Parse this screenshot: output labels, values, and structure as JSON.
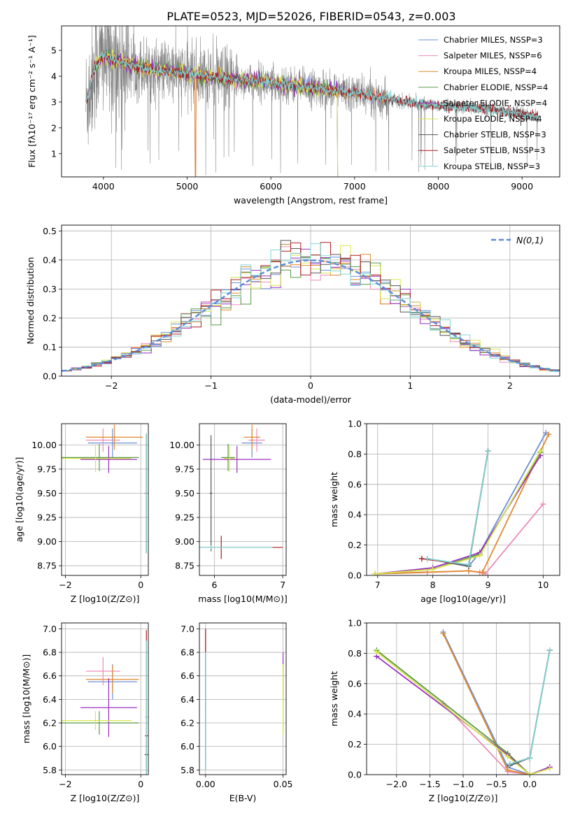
{
  "figure": {
    "title": "PLATE=0523, MJD=52026, FIBERID=0543, z=0.003"
  },
  "colors": {
    "Chabrier MILES": "#6a8fd8",
    "Salpeter MILES": "#ec8cb8",
    "Kroupa MILES": "#e08a2e",
    "Chabrier ELODIE": "#5a9a46",
    "Salpeter ELODIE": "#9b30c0",
    "Kroupa ELODIE": "#d8e64a",
    "Chabrier STELIB": "#555555",
    "Salpeter STELIB": "#b01c22",
    "Kroupa STELIB": "#7fd6d6",
    "data": "#808080",
    "gauss": "#5b8bd8"
  },
  "chart_data": [
    {
      "id": "spectrum",
      "type": "line",
      "title": "PLATE=0523, MJD=52026, FIBERID=0543, z=0.003",
      "xlabel": "wavelength [Angstrom, rest frame]",
      "ylabel": "Flux [fλ10⁻¹⁷ erg cm⁻² s⁻¹ A⁻¹]",
      "xlim": [
        3500,
        9450
      ],
      "ylim": [
        0.1,
        5.95
      ],
      "xticks": [
        4000,
        5000,
        6000,
        7000,
        8000,
        9000
      ],
      "yticks": [
        1,
        2,
        3,
        4,
        5
      ],
      "legend_position": "top-right",
      "legend": [
        {
          "label": "Chabrier MILES, NSSP=3",
          "model": "Chabrier MILES"
        },
        {
          "label": "Salpeter MILES, NSSP=6",
          "model": "Salpeter MILES"
        },
        {
          "label": "Kroupa MILES, NSSP=4",
          "model": "Kroupa MILES"
        },
        {
          "label": "Chabrier ELODIE, NSSP=4",
          "model": "Chabrier ELODIE"
        },
        {
          "label": "Salpeter ELODIE, NSSP=4",
          "model": "Salpeter ELODIE"
        },
        {
          "label": "Kroupa ELODIE, NSSP=4",
          "model": "Kroupa ELODIE"
        },
        {
          "label": "Chabrier STELIB, NSSP=3",
          "model": "Chabrier STELIB"
        },
        {
          "label": "Salpeter STELIB, NSSP=3",
          "model": "Salpeter STELIB"
        },
        {
          "label": "Kroupa STELIB, NSSP=3",
          "model": "Kroupa STELIB"
        }
      ],
      "continuum_x": [
        3800,
        3900,
        4000,
        4200,
        4500,
        5000,
        5500,
        6000,
        6500,
        7000,
        7500,
        8000,
        8500,
        9000,
        9200
      ],
      "continuum_y": [
        3.0,
        4.4,
        4.8,
        4.55,
        4.3,
        4.1,
        3.9,
        3.75,
        3.55,
        3.35,
        3.05,
        2.85,
        2.75,
        2.55,
        2.4
      ],
      "data_x_range": [
        3790,
        9200
      ],
      "miles_x_range": [
        3800,
        7420
      ],
      "stelib_x_range": [
        3790,
        9200
      ],
      "elodie_x_range": [
        3900,
        6800
      ]
    },
    {
      "id": "residuals",
      "type": "step",
      "xlabel": "(data-model)/error",
      "ylabel": "Normed distribution",
      "xlim": [
        -2.5,
        2.5
      ],
      "ylim": [
        0,
        0.52
      ],
      "xticks": [
        -2,
        -1,
        0,
        1,
        2
      ],
      "yticks": [
        0.0,
        0.1,
        0.2,
        0.3,
        0.4,
        0.5
      ],
      "legend_position": "top-right",
      "legend_label": "N(0,1)",
      "bin_width": 0.1,
      "bin_start": -2.5
    },
    {
      "id": "age_vs_Z",
      "type": "errorbar",
      "xlabel": "Z [log10(Z/Z⊙)]",
      "ylabel": "age  [log10(age/yr)]",
      "xlim": [
        -2.1,
        0.2
      ],
      "ylim": [
        8.65,
        10.22
      ],
      "xticks": [
        -2,
        0
      ],
      "yticks": [
        8.75,
        9.0,
        9.25,
        9.5,
        9.75,
        10.0
      ],
      "points": [
        {
          "model": "Chabrier MILES",
          "x": -0.75,
          "xerr": 0.65,
          "y": 10.02,
          "yerr": 0.15
        },
        {
          "model": "Salpeter MILES",
          "x": -1.0,
          "xerr": 0.45,
          "y": 10.05,
          "yerr": 0.12
        },
        {
          "model": "Kroupa MILES",
          "x": -0.7,
          "xerr": 0.75,
          "y": 10.08,
          "yerr": 0.13
        },
        {
          "model": "Chabrier ELODIE",
          "x": -1.1,
          "xerr": 1.05,
          "y": 9.87,
          "yerr": 0.14
        },
        {
          "model": "Salpeter ELODIE",
          "x": -0.85,
          "xerr": 0.75,
          "y": 9.85,
          "yerr": 0.14
        },
        {
          "model": "Kroupa ELODIE",
          "x": -1.2,
          "xerr": 0.95,
          "y": 9.86,
          "yerr": 0.14
        },
        {
          "model": "Chabrier STELIB",
          "x": 0.15,
          "xerr": 0.05,
          "y": 9.5,
          "yerr": 0.6
        },
        {
          "model": "Salpeter STELIB",
          "x": 0.15,
          "xerr": 0.04,
          "y": 9.5,
          "yerr": 0.62
        },
        {
          "model": "Kroupa STELIB",
          "x": 0.15,
          "xerr": 0.04,
          "y": 9.5,
          "yerr": 0.62
        }
      ]
    },
    {
      "id": "age_vs_mass",
      "type": "errorbar",
      "xlabel": "mass [log10(M/M⊙)]",
      "ylabel": "",
      "xlim": [
        5.78,
        7.05
      ],
      "ylim": [
        8.65,
        10.22
      ],
      "xticks": [
        6,
        7
      ],
      "yticks": [
        8.75,
        9.0,
        9.25,
        9.5,
        9.75,
        10.0
      ],
      "points": [
        {
          "model": "Chabrier MILES",
          "x": 6.55,
          "xerr": 0.15,
          "y": 10.02,
          "yerr": 0.15
        },
        {
          "model": "Salpeter MILES",
          "x": 6.62,
          "xerr": 0.12,
          "y": 10.05,
          "yerr": 0.12
        },
        {
          "model": "Kroupa MILES",
          "x": 6.55,
          "xerr": 0.12,
          "y": 10.08,
          "yerr": 0.13
        },
        {
          "model": "Chabrier ELODIE",
          "x": 6.2,
          "xerr": 0.1,
          "y": 9.87,
          "yerr": 0.14
        },
        {
          "model": "Salpeter ELODIE",
          "x": 6.33,
          "xerr": 0.5,
          "y": 9.85,
          "yerr": 0.14
        },
        {
          "model": "Kroupa ELODIE",
          "x": 6.22,
          "xerr": 0.08,
          "y": 9.86,
          "yerr": 0.14
        },
        {
          "model": "Chabrier STELIB",
          "x": 5.95,
          "xerr": 0.02,
          "y": 9.5,
          "yerr": 0.6
        },
        {
          "model": "Salpeter STELIB",
          "x": 6.1,
          "xerr": 0.9,
          "y": 8.94,
          "yerr": 0.12
        },
        {
          "model": "Kroupa STELIB",
          "x": 5.95,
          "xerr": 0.9,
          "y": 8.94,
          "yerr": 0.02
        }
      ]
    },
    {
      "id": "weight_vs_age",
      "type": "line",
      "xlabel": "age  [log10(age/yr)]",
      "ylabel": "mass weight",
      "xlim": [
        6.8,
        10.3
      ],
      "ylim": [
        0,
        1.0
      ],
      "xticks": [
        7,
        8,
        9,
        10
      ],
      "yticks": [
        0.0,
        0.2,
        0.4,
        0.6,
        0.8,
        1.0
      ],
      "series": [
        {
          "model": "Chabrier MILES",
          "x": [
            7.9,
            8.65,
            8.85,
            10.05
          ],
          "y": [
            0.11,
            0.06,
            0.15,
            0.94
          ]
        },
        {
          "model": "Salpeter MILES",
          "x": [
            6.95,
            7.9,
            8.65,
            8.85,
            8.95,
            10.0
          ],
          "y": [
            0.01,
            0.02,
            0.03,
            0.02,
            0.01,
            0.47
          ]
        },
        {
          "model": "Kroupa MILES",
          "x": [
            6.95,
            8.65,
            8.9,
            10.1
          ],
          "y": [
            0.01,
            0.03,
            0.02,
            0.93
          ]
        },
        {
          "model": "Chabrier ELODIE",
          "x": [
            6.95,
            8.0,
            8.85,
            9.95
          ],
          "y": [
            0.01,
            0.04,
            0.14,
            0.81
          ]
        },
        {
          "model": "Salpeter ELODIE",
          "x": [
            6.95,
            8.0,
            8.85,
            9.95
          ],
          "y": [
            0.01,
            0.05,
            0.15,
            0.79
          ]
        },
        {
          "model": "Kroupa ELODIE",
          "x": [
            6.95,
            8.0,
            8.85,
            9.95
          ],
          "y": [
            0.01,
            0.04,
            0.13,
            0.82
          ]
        },
        {
          "model": "Chabrier STELIB",
          "x": [
            7.9,
            8.65,
            9.0
          ],
          "y": [
            0.11,
            0.06,
            0.82
          ]
        },
        {
          "model": "Salpeter STELIB",
          "x": [
            7.8,
            8.65,
            9.0
          ],
          "y": [
            0.11,
            0.07,
            0.82
          ]
        },
        {
          "model": "Kroupa STELIB",
          "x": [
            7.9,
            8.65,
            9.0
          ],
          "y": [
            0.11,
            0.07,
            0.82
          ]
        }
      ]
    },
    {
      "id": "mass_vs_Z",
      "type": "errorbar",
      "xlabel": "Z [log10(Z/Z⊙)]",
      "ylabel": "mass [log10(M/M⊙)]",
      "xlim": [
        -2.1,
        0.2
      ],
      "ylim": [
        5.76,
        7.05
      ],
      "xticks": [
        -2,
        0
      ],
      "yticks": [
        5.8,
        6.0,
        6.2,
        6.4,
        6.6,
        6.8,
        7.0
      ],
      "points": [
        {
          "model": "Chabrier MILES",
          "x": -0.75,
          "xerr": 0.65,
          "y": 6.55,
          "yerr": 0.15
        },
        {
          "model": "Salpeter MILES",
          "x": -1.0,
          "xerr": 0.45,
          "y": 6.64,
          "yerr": 0.12
        },
        {
          "model": "Kroupa MILES",
          "x": -0.75,
          "xerr": 0.7,
          "y": 6.57,
          "yerr": 0.12
        },
        {
          "model": "Chabrier ELODIE",
          "x": -1.1,
          "xerr": 1.05,
          "y": 6.2,
          "yerr": 0.1
        },
        {
          "model": "Salpeter ELODIE",
          "x": -0.85,
          "xerr": 0.75,
          "y": 6.33,
          "yerr": 0.25
        },
        {
          "model": "Kroupa ELODIE",
          "x": -1.2,
          "xerr": 0.95,
          "y": 6.22,
          "yerr": 0.08
        },
        {
          "model": "Chabrier STELIB",
          "x": 0.15,
          "xerr": 0.05,
          "y": 5.93,
          "yerr": 0.12
        },
        {
          "model": "Salpeter STELIB",
          "x": 0.15,
          "xerr": 0.04,
          "y": 6.09,
          "yerr": 0.9
        },
        {
          "model": "Kroupa STELIB",
          "x": 0.15,
          "xerr": 0.04,
          "y": 6.25,
          "yerr": 0.65
        }
      ]
    },
    {
      "id": "mass_vs_ebv",
      "type": "errorbar",
      "xlabel": "E(B-V)",
      "ylabel": "",
      "xlim": [
        -0.004,
        0.052
      ],
      "ylim": [
        5.76,
        7.05
      ],
      "xticks": [
        0.0,
        0.05
      ],
      "xtick_labels": [
        "0.00",
        "0.05"
      ],
      "yticks": [
        5.8,
        6.0,
        6.2,
        6.4,
        6.6,
        6.8,
        7.0
      ],
      "points": [
        {
          "model": "Chabrier MILES",
          "x": 0.0,
          "xerr": 0,
          "y": 6.4,
          "yerr": 0.6
        },
        {
          "model": "Salpeter MILES",
          "x": 0.0,
          "xerr": 0,
          "y": 6.6,
          "yerr": 0.35
        },
        {
          "model": "Kroupa MILES",
          "x": 0.0,
          "xerr": 0,
          "y": 6.6,
          "yerr": 0.35
        },
        {
          "model": "Chabrier ELODIE",
          "x": 0.05,
          "xerr": 0,
          "y": 6.42,
          "yerr": 0.3
        },
        {
          "model": "Salpeter ELODIE",
          "x": 0.05,
          "xerr": 0,
          "y": 6.6,
          "yerr": 0.2
        },
        {
          "model": "Kroupa ELODIE",
          "x": 0.05,
          "xerr": 0,
          "y": 6.4,
          "yerr": 0.3
        },
        {
          "model": "Chabrier STELIB",
          "x": 0.0,
          "xerr": 0,
          "y": 6.3,
          "yerr": 0.5
        },
        {
          "model": "Salpeter STELIB",
          "x": 0.0,
          "xerr": 0,
          "y": 6.45,
          "yerr": 0.55
        },
        {
          "model": "Kroupa STELIB",
          "x": 0.0,
          "xerr": 0,
          "y": 6.3,
          "yerr": 0.5
        }
      ]
    },
    {
      "id": "weight_vs_Z",
      "type": "line",
      "xlabel": "Z [log10(Z/Z⊙)]",
      "ylabel": "mass weight",
      "xlim": [
        -2.45,
        0.45
      ],
      "ylim": [
        0,
        1.0
      ],
      "xticks": [
        -2.0,
        -1.5,
        -1.0,
        -0.5,
        0.0
      ],
      "yticks": [
        0.0,
        0.2,
        0.4,
        0.6,
        0.8,
        1.0
      ],
      "series": [
        {
          "model": "Chabrier MILES",
          "x": [
            -1.3,
            -0.33,
            0.0
          ],
          "y": [
            0.94,
            0.05,
            0.0
          ]
        },
        {
          "model": "Salpeter MILES",
          "x": [
            -1.3,
            -0.33,
            0.0
          ],
          "y": [
            0.47,
            0.02,
            0.0
          ]
        },
        {
          "model": "Kroupa MILES",
          "x": [
            -1.3,
            -0.33,
            0.0
          ],
          "y": [
            0.93,
            0.03,
            0.0
          ]
        },
        {
          "model": "Chabrier ELODIE",
          "x": [
            -2.3,
            -0.33,
            0.0,
            0.3
          ],
          "y": [
            0.82,
            0.14,
            0.0,
            0.05
          ]
        },
        {
          "model": "Salpeter ELODIE",
          "x": [
            -2.3,
            -0.33,
            0.0,
            0.3
          ],
          "y": [
            0.78,
            0.13,
            0.0,
            0.05
          ]
        },
        {
          "model": "Kroupa ELODIE",
          "x": [
            -2.3,
            -0.33,
            0.0,
            0.3
          ],
          "y": [
            0.81,
            0.12,
            0.0,
            0.04
          ]
        },
        {
          "model": "Chabrier STELIB",
          "x": [
            -0.3,
            0.0,
            0.3
          ],
          "y": [
            0.06,
            0.11,
            0.82
          ]
        },
        {
          "model": "Salpeter STELIB",
          "x": [
            -0.3,
            0.0,
            0.3
          ],
          "y": [
            0.07,
            0.11,
            0.82
          ]
        },
        {
          "model": "Kroupa STELIB",
          "x": [
            -0.3,
            0.0,
            0.3
          ],
          "y": [
            0.07,
            0.11,
            0.82
          ]
        }
      ]
    }
  ]
}
